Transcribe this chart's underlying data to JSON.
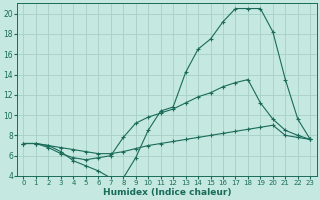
{
  "xlabel": "Humidex (Indice chaleur)",
  "bg_color": "#c5e8e0",
  "grid_color": "#a8cfc8",
  "line_color": "#1a6b5a",
  "line1_x": [
    0,
    1,
    2,
    3,
    4,
    5,
    6,
    7,
    8,
    9,
    10,
    11,
    12,
    13,
    14,
    15,
    16,
    17,
    18,
    19,
    20,
    21,
    22,
    23
  ],
  "line1_y": [
    7.2,
    7.2,
    7.0,
    6.4,
    5.5,
    5.0,
    4.5,
    3.8,
    3.8,
    5.8,
    8.5,
    10.4,
    10.8,
    14.2,
    16.5,
    17.5,
    19.2,
    20.5,
    20.5,
    20.5,
    18.2,
    13.5,
    9.6,
    7.6
  ],
  "line2_x": [
    0,
    1,
    2,
    3,
    4,
    5,
    6,
    7,
    8,
    9,
    10,
    11,
    12,
    13,
    14,
    15,
    16,
    17,
    18,
    19,
    20,
    21,
    22,
    23
  ],
  "line2_y": [
    7.2,
    7.2,
    6.8,
    6.2,
    5.8,
    5.6,
    5.8,
    6.0,
    7.8,
    9.2,
    9.8,
    10.2,
    10.6,
    11.2,
    11.8,
    12.2,
    12.8,
    13.2,
    13.5,
    11.2,
    9.6,
    8.5,
    8.0,
    7.6
  ],
  "line3_x": [
    0,
    1,
    2,
    3,
    4,
    5,
    6,
    7,
    8,
    9,
    10,
    11,
    12,
    13,
    14,
    15,
    16,
    17,
    18,
    19,
    20,
    21,
    22,
    23
  ],
  "line3_y": [
    7.2,
    7.2,
    7.0,
    6.8,
    6.6,
    6.4,
    6.2,
    6.2,
    6.4,
    6.7,
    7.0,
    7.2,
    7.4,
    7.6,
    7.8,
    8.0,
    8.2,
    8.4,
    8.6,
    8.8,
    9.0,
    8.0,
    7.8,
    7.6
  ],
  "xlim": [
    -0.5,
    23.5
  ],
  "ylim": [
    4,
    21
  ],
  "xticks": [
    0,
    1,
    2,
    3,
    4,
    5,
    6,
    7,
    8,
    9,
    10,
    11,
    12,
    13,
    14,
    15,
    16,
    17,
    18,
    19,
    20,
    21,
    22,
    23
  ],
  "yticks": [
    4,
    6,
    8,
    10,
    12,
    14,
    16,
    18,
    20
  ],
  "xlabel_fontsize": 6.5,
  "tick_fontsize": 5.0,
  "ytick_fontsize": 5.5
}
